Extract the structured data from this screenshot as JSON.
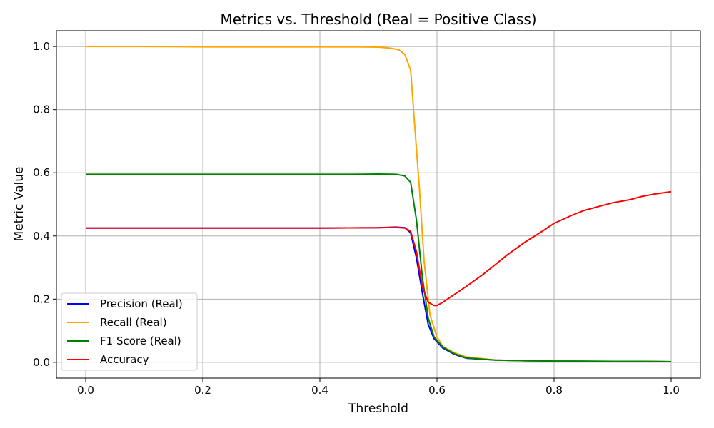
{
  "chart_data": {
    "type": "line",
    "title": "Metrics vs. Threshold (Real = Positive Class)",
    "xlabel": "Threshold",
    "ylabel": "Metric Value",
    "xlim": [
      -0.05,
      1.05
    ],
    "ylim": [
      -0.05,
      1.05
    ],
    "xticks": [
      0.0,
      0.2,
      0.4,
      0.6,
      0.8,
      1.0
    ],
    "xtick_labels": [
      "0.0",
      "0.2",
      "0.4",
      "0.6",
      "0.8",
      "1.0"
    ],
    "yticks": [
      0.0,
      0.2,
      0.4,
      0.6,
      0.8,
      1.0
    ],
    "ytick_labels": [
      "0.0",
      "0.2",
      "0.4",
      "0.6",
      "0.8",
      "1.0"
    ],
    "grid": true,
    "legend_position": "lower-left",
    "series": [
      {
        "name": "Precision (Real)",
        "color": "#0000ff",
        "x": [
          0.0,
          0.1,
          0.2,
          0.3,
          0.4,
          0.5,
          0.53,
          0.545,
          0.555,
          0.565,
          0.575,
          0.585,
          0.595,
          0.61,
          0.63,
          0.65,
          0.7,
          0.75,
          0.8,
          0.85,
          0.9,
          0.95,
          1.0
        ],
        "y": [
          0.425,
          0.425,
          0.425,
          0.425,
          0.425,
          0.426,
          0.428,
          0.426,
          0.41,
          0.33,
          0.22,
          0.12,
          0.075,
          0.045,
          0.025,
          0.013,
          0.007,
          0.005,
          0.004,
          0.003,
          0.003,
          0.003,
          0.002
        ]
      },
      {
        "name": "Recall (Real)",
        "color": "#ffa500",
        "x": [
          0.0,
          0.1,
          0.2,
          0.3,
          0.4,
          0.45,
          0.5,
          0.52,
          0.535,
          0.545,
          0.555,
          0.562,
          0.57,
          0.578,
          0.588,
          0.6,
          0.61,
          0.63,
          0.65,
          0.7,
          0.75,
          0.8,
          0.85,
          0.9,
          0.95,
          1.0
        ],
        "y": [
          1.0,
          1.0,
          0.999,
          0.999,
          0.999,
          0.999,
          0.998,
          0.995,
          0.99,
          0.975,
          0.925,
          0.75,
          0.55,
          0.32,
          0.15,
          0.08,
          0.05,
          0.03,
          0.017,
          0.007,
          0.005,
          0.004,
          0.003,
          0.003,
          0.003,
          0.002
        ]
      },
      {
        "name": "F1 Score (Real)",
        "color": "#008000",
        "x": [
          0.0,
          0.1,
          0.2,
          0.3,
          0.4,
          0.45,
          0.5,
          0.53,
          0.545,
          0.555,
          0.565,
          0.575,
          0.585,
          0.595,
          0.61,
          0.63,
          0.65,
          0.7,
          0.75,
          0.8,
          0.85,
          0.9,
          0.95,
          1.0
        ],
        "y": [
          0.595,
          0.595,
          0.595,
          0.595,
          0.595,
          0.595,
          0.596,
          0.595,
          0.59,
          0.57,
          0.45,
          0.27,
          0.14,
          0.08,
          0.048,
          0.027,
          0.014,
          0.007,
          0.005,
          0.004,
          0.004,
          0.003,
          0.003,
          0.002
        ]
      },
      {
        "name": "Accuracy",
        "color": "#ff0000",
        "x": [
          0.0,
          0.1,
          0.2,
          0.3,
          0.4,
          0.5,
          0.53,
          0.545,
          0.555,
          0.565,
          0.575,
          0.585,
          0.595,
          0.6,
          0.61,
          0.63,
          0.65,
          0.68,
          0.7,
          0.72,
          0.75,
          0.78,
          0.8,
          0.83,
          0.85,
          0.88,
          0.9,
          0.93,
          0.95,
          0.97,
          1.0
        ],
        "y": [
          0.425,
          0.425,
          0.425,
          0.425,
          0.425,
          0.426,
          0.427,
          0.425,
          0.415,
          0.35,
          0.24,
          0.19,
          0.18,
          0.18,
          0.19,
          0.215,
          0.24,
          0.28,
          0.31,
          0.34,
          0.38,
          0.415,
          0.44,
          0.465,
          0.48,
          0.495,
          0.505,
          0.515,
          0.525,
          0.532,
          0.54
        ]
      }
    ]
  }
}
